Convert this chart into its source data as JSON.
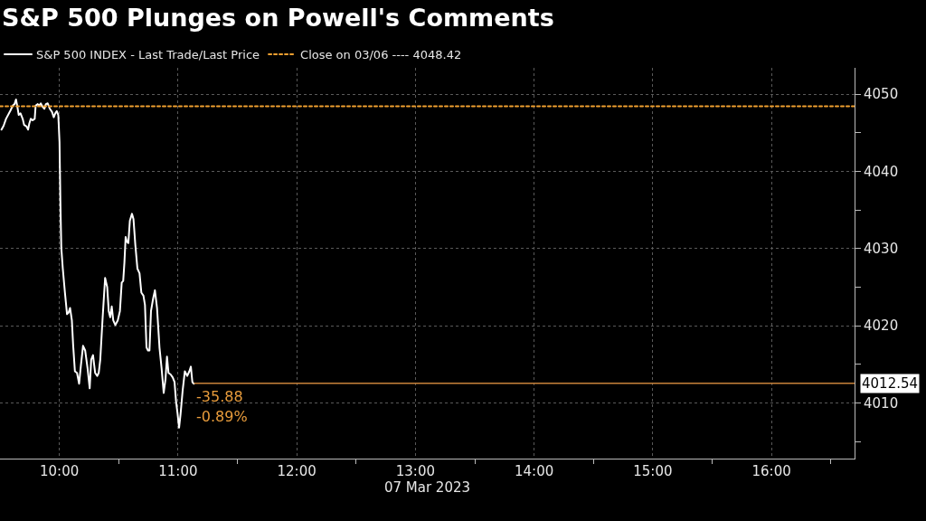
{
  "chart_data": {
    "type": "line",
    "title": "S&P 500 Plunges on Powell's Comments",
    "xlabel": "07 Mar 2023",
    "series": [
      {
        "name": "S&P 500 INDEX - Last Trade/Last Price",
        "color": "#ffffff",
        "x": [
          "2023-03-07T09:30:46",
          "2023-03-07T09:31:50",
          "2023-03-07T09:33:03",
          "2023-03-07T09:35:20",
          "2023-03-07T09:36:25",
          "2023-03-07T09:37:20",
          "2023-03-07T09:38:05",
          "2023-03-07T09:38:42",
          "2023-03-07T09:39:28",
          "2023-03-07T09:40:23",
          "2023-03-07T09:41:27",
          "2023-03-07T09:42:13",
          "2023-03-07T09:43:26",
          "2023-03-07T09:44:12",
          "2023-03-07T09:44:49",
          "2023-03-07T09:45:34",
          "2023-03-07T09:46:29",
          "2023-03-07T09:47:33",
          "2023-03-07T09:48:01",
          "2023-03-07T09:49:05",
          "2023-03-07T09:49:51",
          "2023-03-07T09:50:37",
          "2023-03-07T09:51:22",
          "2023-03-07T09:52:27",
          "2023-03-07T09:53:12",
          "2023-03-07T09:54:07",
          "2023-03-07T09:55:11",
          "2023-03-07T09:56:16",
          "2023-03-07T09:57:11",
          "2023-03-07T09:57:56",
          "2023-03-07T09:58:42",
          "2023-03-07T09:59:28",
          "2023-03-07T10:00:05",
          "2023-03-07T10:00:32",
          "2023-03-07T10:00:59",
          "2023-03-07T10:01:45",
          "2023-03-07T10:02:49",
          "2023-03-07T10:03:53",
          "2023-03-07T10:04:39",
          "2023-03-07T10:05:25",
          "2023-03-07T10:06:20",
          "2023-03-07T10:06:57",
          "2023-03-07T10:07:52",
          "2023-03-07T10:08:56",
          "2023-03-07T10:10:00",
          "2023-03-07T10:10:55",
          "2023-03-07T10:11:59",
          "2023-03-07T10:13:03",
          "2023-03-07T10:14:16",
          "2023-03-07T10:15:21",
          "2023-03-07T10:16:06",
          "2023-03-07T10:17:01",
          "2023-03-07T10:18:05",
          "2023-03-07T10:19:10",
          "2023-03-07T10:19:55",
          "2023-03-07T10:20:41",
          "2023-03-07T10:21:54",
          "2023-03-07T10:23:08",
          "2023-03-07T10:24:12",
          "2023-03-07T10:24:58",
          "2023-03-07T10:25:43",
          "2023-03-07T10:26:29",
          "2023-03-07T10:27:15",
          "2023-03-07T10:28:19",
          "2023-03-07T10:29:32",
          "2023-03-07T10:30:37",
          "2023-03-07T10:31:32",
          "2023-03-07T10:32:17",
          "2023-03-07T10:32:54",
          "2023-03-07T10:33:31",
          "2023-03-07T10:34:07",
          "2023-03-07T10:34:53",
          "2023-03-07T10:35:39",
          "2023-03-07T10:36:43",
          "2023-03-07T10:37:29",
          "2023-03-07T10:38:24",
          "2023-03-07T10:39:28",
          "2023-03-07T10:40:32",
          "2023-03-07T10:41:27",
          "2023-03-07T10:42:31",
          "2023-03-07T10:43:17",
          "2023-03-07T10:44:03",
          "2023-03-07T10:44:49",
          "2023-03-07T10:45:34",
          "2023-03-07T10:46:20",
          "2023-03-07T10:47:24",
          "2023-03-07T10:48:19",
          "2023-03-07T10:49:23",
          "2023-03-07T10:50:37",
          "2023-03-07T10:51:41",
          "2023-03-07T10:52:45",
          "2023-03-07T10:53:40",
          "2023-03-07T10:54:25",
          "2023-03-07T10:55:11",
          "2023-03-07T10:56:16",
          "2023-03-07T10:57:20",
          "2023-03-07T10:58:14",
          "2023-03-07T10:59:00",
          "2023-03-07T10:59:46",
          "2023-03-07T11:00:32",
          "2023-03-07T11:01:18",
          "2023-03-07T11:02:22",
          "2023-03-07T11:03:26",
          "2023-03-07T11:04:39",
          "2023-03-07T11:05:43",
          "2023-03-07T11:06:29",
          "2023-03-07T11:07:15",
          "2023-03-07T11:08:01"
        ],
        "values": [
          4045.4,
          4045.9,
          4046.8,
          4047.9,
          4048.5,
          4048.7,
          4049.3,
          4048.5,
          4047.3,
          4047.5,
          4046.8,
          4046.0,
          4045.8,
          4045.4,
          4046.2,
          4046.8,
          4046.6,
          4046.8,
          4048.5,
          4048.7,
          4048.5,
          4048.8,
          4048.4,
          4048.1,
          4048.7,
          4048.8,
          4048.1,
          4047.7,
          4047.0,
          4047.5,
          4047.8,
          4047.3,
          4043.8,
          4036.0,
          4030.1,
          4027.4,
          4024.3,
          4021.5,
          4021.7,
          4022.3,
          4020.7,
          4017.6,
          4014.1,
          4013.9,
          4012.5,
          4014.9,
          4017.4,
          4016.8,
          4014.5,
          4011.9,
          4015.6,
          4016.2,
          4013.9,
          4013.5,
          4013.9,
          4015.6,
          4021.1,
          4026.2,
          4025.0,
          4021.9,
          4021.1,
          4022.5,
          4020.7,
          4020.1,
          4020.7,
          4021.9,
          4025.6,
          4025.8,
          4028.2,
          4031.5,
          4030.9,
          4030.7,
          4033.6,
          4034.5,
          4033.8,
          4030.5,
          4027.4,
          4026.8,
          4024.3,
          4023.9,
          4022.7,
          4017.2,
          4016.8,
          4016.8,
          4021.9,
          4023.5,
          4024.6,
          4022.3,
          4017.2,
          4014.5,
          4011.3,
          4013.1,
          4016.0,
          4013.9,
          4013.7,
          4013.3,
          4012.7,
          4010.2,
          4008.6,
          4006.8,
          4008.6,
          4011.7,
          4014.1,
          4013.5,
          4014.1,
          4014.7,
          4012.7,
          4012.5
        ]
      },
      {
        "name": "Close on 03/06 ---- 4048.42",
        "color": "#f0a030",
        "line_style": "dotted",
        "x": [
          "2023-03-07T09:30",
          "2023-03-07T16:42"
        ],
        "values": [
          4048.42,
          4048.42
        ]
      }
    ],
    "ref_lines": [
      {
        "axis": "y",
        "value": 4012.54,
        "label": "4012.54",
        "color": "#c8823a"
      }
    ],
    "annotations": [
      {
        "text": "-35.88",
        "x": "2023-03-07T11:08:01",
        "y": 4012.5
      },
      {
        "text": "-0.89%",
        "x": "2023-03-07T11:08:01",
        "y": 4012.5
      }
    ],
    "xlim": [
      "2023-03-07T09:30",
      "2023-03-07T16:42"
    ],
    "xticks": [
      {
        "value": "2023-03-07T10:00",
        "label": "10:00"
      },
      {
        "value": "2023-03-07T10:30",
        "label": null
      },
      {
        "value": "2023-03-07T11:00",
        "label": "11:00"
      },
      {
        "value": "2023-03-07T11:30",
        "label": null
      },
      {
        "value": "2023-03-07T12:00",
        "label": "12:00"
      },
      {
        "value": "2023-03-07T12:30",
        "label": null
      },
      {
        "value": "2023-03-07T13:00",
        "label": "13:00"
      },
      {
        "value": "2023-03-07T13:30",
        "label": null
      },
      {
        "value": "2023-03-07T14:00",
        "label": "14:00"
      },
      {
        "value": "2023-03-07T14:30",
        "label": null
      },
      {
        "value": "2023-03-07T15:00",
        "label": "15:00"
      },
      {
        "value": "2023-03-07T15:30",
        "label": null
      },
      {
        "value": "2023-03-07T16:00",
        "label": "16:00"
      },
      {
        "value": "2023-03-07T16:30",
        "label": null
      }
    ],
    "ylim": [
      4002.8,
      4053.4
    ],
    "yticks": [
      {
        "value": 4005,
        "label": null
      },
      4010,
      {
        "value": 4015,
        "label": null
      },
      4020,
      {
        "value": 4025,
        "label": null
      },
      4030,
      {
        "value": 4035,
        "label": null
      },
      4040,
      {
        "value": 4045,
        "label": null
      },
      4050
    ],
    "line_style": "solid",
    "grid": true,
    "legend": "top left"
  }
}
